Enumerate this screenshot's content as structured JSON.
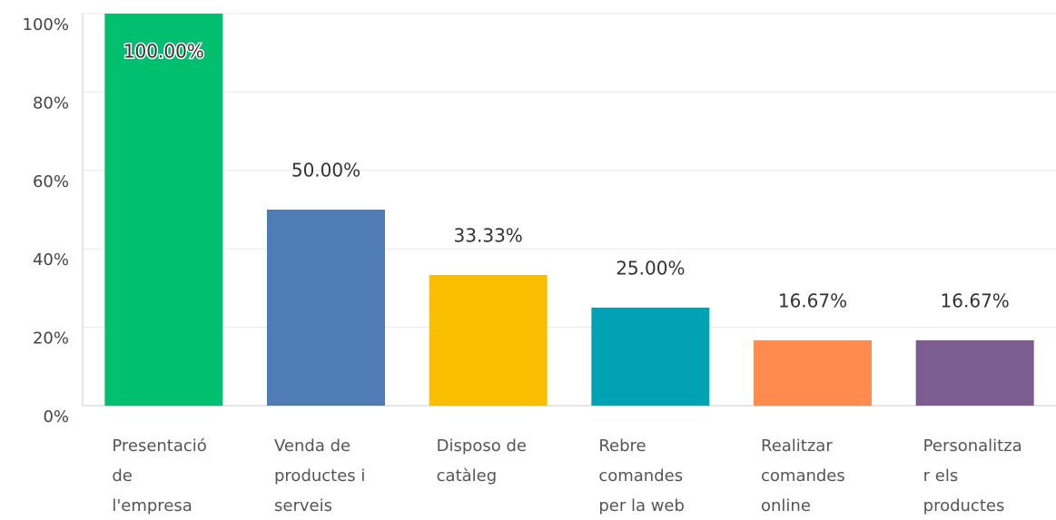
{
  "chart_data": {
    "type": "bar",
    "categories": [
      "Presentació de l'empresa",
      "Venda de productes i serveis",
      "Disposo de catàleg",
      "Rebre comandes per la web",
      "Realitzar comandes online",
      "Personalitzar els productes"
    ],
    "values": [
      100,
      50,
      33.33,
      25,
      16.67,
      16.67
    ],
    "value_labels": [
      "100.00%",
      "50.00%",
      "33.33%",
      "25.00%",
      "16.67%",
      "16.67%"
    ],
    "colors": [
      "#00bf6f",
      "#507cb6",
      "#f9be00",
      "#00a2b4",
      "#ff8b4f",
      "#7d5c91"
    ],
    "ylim": [
      0,
      100
    ],
    "yticks": [
      {
        "value": 0,
        "label": "0%"
      },
      {
        "value": 20,
        "label": "20%"
      },
      {
        "value": 40,
        "label": "40%"
      },
      {
        "value": 60,
        "label": "60%"
      },
      {
        "value": 80,
        "label": "80%"
      },
      {
        "value": 100,
        "label": "100%"
      }
    ],
    "grid": true
  }
}
